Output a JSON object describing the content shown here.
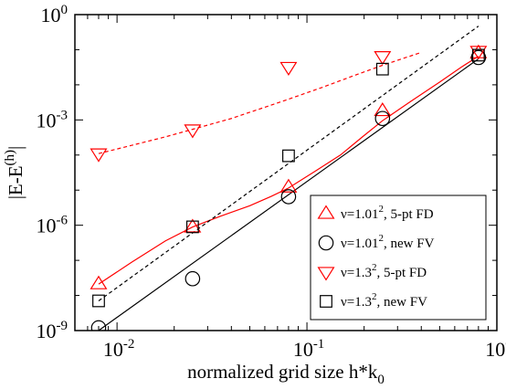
{
  "chart_data": {
    "type": "scatter",
    "x_scale": "log",
    "y_scale": "log",
    "xlim": [
      0.006,
      1
    ],
    "ylim": [
      1e-09,
      1
    ],
    "xlabel": {
      "main": "normalized grid size h*k",
      "sub": "0"
    },
    "ylabel": {
      "main": "|E-E",
      "sup": "(h)",
      "tail": "|"
    },
    "x_ticks": [
      {
        "value": 0.01,
        "base": "10",
        "exp": "-2"
      },
      {
        "value": 0.1,
        "base": "10",
        "exp": "-1"
      },
      {
        "value": 1,
        "base": "10",
        "exp": "0"
      }
    ],
    "y_ticks": [
      {
        "value": 1e-09,
        "base": "10",
        "exp": "-9"
      },
      {
        "value": 1e-06,
        "base": "10",
        "exp": "-6"
      },
      {
        "value": 0.001,
        "base": "10",
        "exp": "-3"
      },
      {
        "value": 1,
        "base": "10",
        "exp": "0"
      }
    ],
    "legend_position": "bottom-right",
    "series": [
      {
        "name": "ν=1.01², 5-pt FD",
        "legend": {
          "pre": "ν=1.01",
          "sup": "2",
          "post": ", 5-pt FD"
        },
        "marker": "triangle-up",
        "color": "#ff0000",
        "x": [
          0.008,
          0.025,
          0.08,
          0.25,
          0.8
        ],
        "y": [
          2.1e-08,
          8.7e-07,
          1.2e-05,
          0.0018,
          0.08
        ],
        "fit": {
          "style": "solid",
          "x": [
            0.008,
            0.012,
            0.018,
            0.025,
            0.035,
            0.05,
            0.065,
            0.08,
            0.11,
            0.15,
            0.2,
            0.25,
            0.35,
            0.5,
            0.65,
            0.8
          ],
          "y": [
            2.1e-08,
            9e-08,
            3.6e-07,
            8.9e-07,
            1.8e-06,
            3.6e-06,
            6.7e-06,
            1.15e-05,
            3.4e-05,
            0.0001,
            0.00036,
            0.00095,
            0.0033,
            0.012,
            0.032,
            0.065
          ]
        }
      },
      {
        "name": "ν=1.01², new FV",
        "legend": {
          "pre": "ν=1.01",
          "sup": "2",
          "post": ", new FV"
        },
        "marker": "circle",
        "color": "#000000",
        "x": [
          0.008,
          0.025,
          0.08,
          0.25,
          0.8
        ],
        "y": [
          1.2e-09,
          3e-08,
          6.5e-06,
          0.0011,
          0.06
        ],
        "fit": {
          "style": "solid",
          "x": [
            0.008,
            0.8
          ],
          "y": [
            1e-09,
            0.055
          ]
        }
      },
      {
        "name": "ν=1.3², 5-pt FD",
        "legend": {
          "pre": "ν=1.3",
          "sup": "2",
          "post": ", 5-pt FD"
        },
        "marker": "triangle-down",
        "color": "#ff0000",
        "x": [
          0.008,
          0.025,
          0.08,
          0.25,
          0.8
        ],
        "y": [
          0.00011,
          0.00053,
          0.032,
          0.065,
          0.092
        ],
        "fit": {
          "style": "dashed",
          "x": [
            0.008,
            0.012,
            0.018,
            0.025,
            0.04,
            0.06,
            0.08,
            0.12,
            0.18,
            0.25,
            0.4
          ],
          "y": [
            0.00011,
            0.00019,
            0.00033,
            0.00054,
            0.0011,
            0.0023,
            0.0039,
            0.0084,
            0.019,
            0.036,
            0.084
          ]
        }
      },
      {
        "name": "ν=1.3², new FV",
        "legend": {
          "pre": "ν=1.3",
          "sup": "2",
          "post": ", new FV"
        },
        "marker": "square",
        "color": "#000000",
        "x": [
          0.008,
          0.025,
          0.08,
          0.25,
          0.8
        ],
        "y": [
          7e-09,
          9e-07,
          9.5e-05,
          0.028,
          0.07
        ],
        "fit": {
          "style": "dashed",
          "x": [
            0.008,
            0.8
          ],
          "y": [
            7e-09,
            0.47
          ]
        }
      }
    ]
  }
}
